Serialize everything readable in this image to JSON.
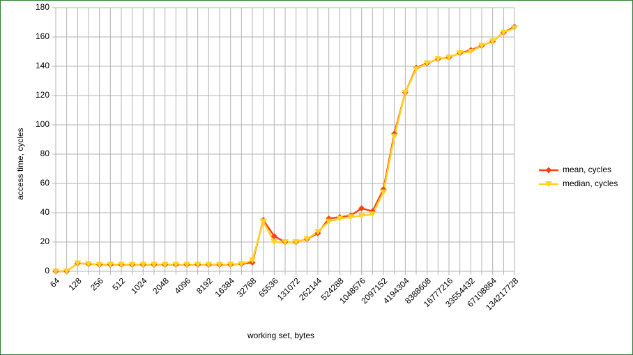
{
  "chart_data": {
    "type": "line",
    "x_label": "working set, bytes",
    "y_label": "access time, cycles",
    "categories": [
      "64",
      null,
      "128",
      null,
      "256",
      null,
      "512",
      null,
      "1024",
      null,
      "2048",
      null,
      "4096",
      null,
      "8192",
      null,
      "16384",
      null,
      "32768",
      null,
      "65536",
      null,
      "131072",
      null,
      "262144",
      null,
      "524288",
      null,
      "1048576",
      null,
      "2097152",
      null,
      "4194304",
      null,
      "8388608",
      null,
      "16777216",
      null,
      "33554432",
      null,
      "67108864",
      null,
      "134217728"
    ],
    "series": [
      {
        "name": "mean, cycles",
        "color": "#ff420e",
        "marker": "diamond",
        "values": [
          0,
          0,
          5.5,
          5,
          4.5,
          4.5,
          4.5,
          4.5,
          4.5,
          4.5,
          4.5,
          4.5,
          4.5,
          4.5,
          4.5,
          4.5,
          4.5,
          5,
          6,
          35,
          24,
          20,
          20,
          22,
          26,
          36,
          37,
          38,
          43,
          41,
          56,
          94,
          122,
          139,
          142,
          145,
          146,
          149,
          151,
          154,
          157,
          163,
          167
        ]
      },
      {
        "name": "median, cycles",
        "color": "#ffd320",
        "marker": "triangle-down",
        "values": [
          0,
          0,
          5.5,
          5,
          4.5,
          4.5,
          4.5,
          4.5,
          4.5,
          4.5,
          4.5,
          4.5,
          4.5,
          4.5,
          4.5,
          4.5,
          4.5,
          5,
          7.5,
          34,
          20,
          20,
          20,
          22,
          27,
          34,
          36,
          37,
          38,
          39,
          54,
          92,
          122,
          138,
          142,
          145,
          146,
          149,
          150,
          154,
          157,
          163,
          166
        ]
      }
    ],
    "ylim": [
      0,
      180
    ],
    "yticks": [
      0,
      20,
      40,
      60,
      80,
      100,
      120,
      140,
      160,
      180
    ],
    "grid": true,
    "legend": "right"
  }
}
